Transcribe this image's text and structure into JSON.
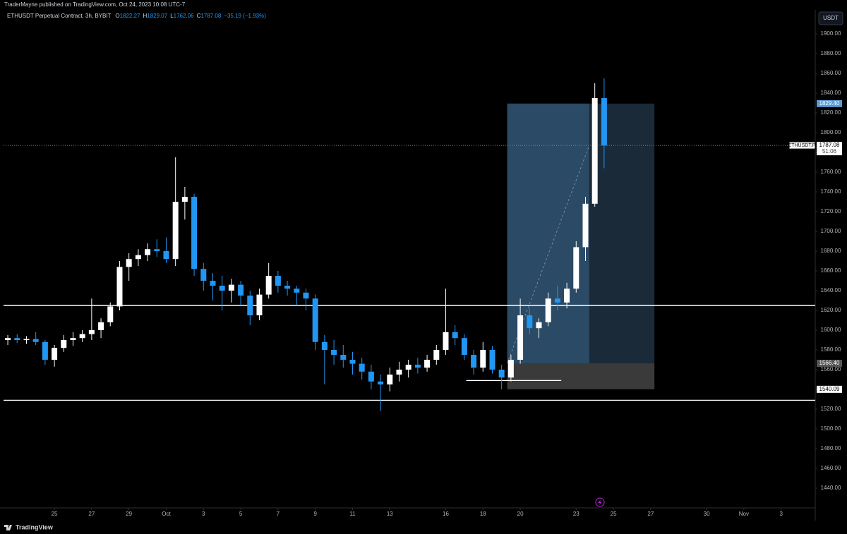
{
  "header": {
    "published": "TraderMayne published on TradingView.com, Oct 24, 2023 10:08 UTC-7"
  },
  "footer": {
    "brand": "TradingView"
  },
  "chart_data": {
    "type": "candlestick",
    "title": "ETHUSDT Perpetual Contract, 3h, BYBIT",
    "legend": {
      "keys": [
        "O",
        "H",
        "L",
        "C"
      ],
      "values": [
        1822.27,
        1829.07,
        1762.06,
        1787.08
      ],
      "change": "−35.19 (−1.93%)"
    },
    "currency": "USDT",
    "up_color": "#ffffff",
    "down_color": "#2196f3",
    "x": [
      22.5,
      23,
      23.5,
      24,
      24.5,
      25,
      25.5,
      26,
      26.5,
      27,
      27.5,
      28,
      28.5,
      29,
      29.5,
      30,
      30.5,
      31,
      31.5,
      32,
      32.5,
      33,
      33.5,
      34,
      34.5,
      35,
      35.5,
      36,
      36.5,
      37,
      37.5,
      38,
      38.5,
      39,
      39.5,
      40,
      40.5,
      41,
      41.5,
      42,
      42.5,
      43,
      43.5,
      44,
      44.5,
      45,
      45.5,
      46,
      46.5,
      47,
      47.5,
      48,
      48.5,
      49,
      49.5,
      50,
      50.5,
      51,
      51.5,
      52,
      52.5,
      53,
      53.5,
      54,
      54.5
    ],
    "open": [
      1590,
      1592,
      1590,
      1591,
      1588,
      1570,
      1582,
      1590,
      1592,
      1596,
      1600,
      1608,
      1624,
      1664,
      1672,
      1676,
      1682,
      1680,
      1672,
      1730,
      1735,
      1662,
      1650,
      1645,
      1640,
      1646,
      1635,
      1615,
      1636,
      1655,
      1645,
      1642,
      1638,
      1632,
      1588,
      1580,
      1575,
      1570,
      1566,
      1558,
      1548,
      1545,
      1555,
      1560,
      1565,
      1562,
      1570,
      1580,
      1598,
      1592,
      1575,
      1562,
      1580,
      1560,
      1552,
      1570,
      1615,
      1602,
      1608,
      1632,
      1628,
      1642,
      1684,
      1728,
      1835
    ],
    "high": [
      1595,
      1596,
      1594,
      1598,
      1590,
      1585,
      1595,
      1598,
      1600,
      1632,
      1612,
      1628,
      1670,
      1678,
      1682,
      1688,
      1692,
      1694,
      1775,
      1745,
      1738,
      1668,
      1658,
      1655,
      1652,
      1650,
      1640,
      1642,
      1668,
      1660,
      1650,
      1645,
      1642,
      1636,
      1595,
      1590,
      1585,
      1578,
      1572,
      1565,
      1555,
      1562,
      1568,
      1570,
      1572,
      1575,
      1585,
      1642,
      1605,
      1596,
      1580,
      1588,
      1584,
      1565,
      1575,
      1632,
      1622,
      1612,
      1638,
      1645,
      1648,
      1690,
      1735,
      1850,
      1855
    ],
    "low": [
      1585,
      1587,
      1586,
      1585,
      1565,
      1563,
      1578,
      1584,
      1588,
      1590,
      1592,
      1604,
      1620,
      1650,
      1665,
      1670,
      1674,
      1668,
      1665,
      1712,
      1655,
      1640,
      1630,
      1620,
      1628,
      1625,
      1605,
      1610,
      1632,
      1638,
      1635,
      1625,
      1620,
      1580,
      1545,
      1565,
      1562,
      1555,
      1550,
      1540,
      1518,
      1538,
      1548,
      1552,
      1556,
      1558,
      1565,
      1575,
      1585,
      1570,
      1555,
      1558,
      1556,
      1540,
      1548,
      1566,
      1596,
      1592,
      1604,
      1620,
      1622,
      1638,
      1670,
      1725,
      1764
    ],
    "close": [
      1592,
      1590,
      1591,
      1588,
      1570,
      1582,
      1590,
      1592,
      1596,
      1600,
      1608,
      1624,
      1664,
      1672,
      1676,
      1682,
      1680,
      1672,
      1730,
      1735,
      1662,
      1650,
      1645,
      1640,
      1646,
      1635,
      1615,
      1636,
      1655,
      1645,
      1642,
      1638,
      1632,
      1588,
      1580,
      1575,
      1570,
      1566,
      1558,
      1548,
      1545,
      1555,
      1560,
      1565,
      1562,
      1570,
      1580,
      1598,
      1592,
      1575,
      1562,
      1580,
      1560,
      1552,
      1570,
      1615,
      1602,
      1608,
      1632,
      1628,
      1642,
      1684,
      1728,
      1835,
      1787
    ],
    "xlim": [
      22.27,
      65.83
    ],
    "ylim": [
      1420,
      1924.3
    ],
    "xticks": [
      {
        "value": 25,
        "label": "25"
      },
      {
        "value": 27,
        "label": "27"
      },
      {
        "value": 29,
        "label": "29"
      },
      {
        "value": 31,
        "label": "Oct"
      },
      {
        "value": 33,
        "label": "3"
      },
      {
        "value": 35,
        "label": "5"
      },
      {
        "value": 37,
        "label": "7"
      },
      {
        "value": 39,
        "label": "9"
      },
      {
        "value": 41,
        "label": "11"
      },
      {
        "value": 43,
        "label": "13"
      },
      {
        "value": 46,
        "label": "16"
      },
      {
        "value": 48,
        "label": "18"
      },
      {
        "value": 50,
        "label": "20"
      },
      {
        "value": 53,
        "label": "23"
      },
      {
        "value": 55,
        "label": "25"
      },
      {
        "value": 57,
        "label": "27"
      },
      {
        "value": 60,
        "label": "30"
      },
      {
        "value": 62,
        "label": "Nov"
      },
      {
        "value": 64,
        "label": "3"
      }
    ],
    "yticks": [
      {
        "value": 1440,
        "label": "1440.00"
      },
      {
        "value": 1460,
        "label": "1460.00"
      },
      {
        "value": 1480,
        "label": "1480.00"
      },
      {
        "value": 1500,
        "label": "1500.00"
      },
      {
        "value": 1520,
        "label": "1520.00"
      },
      {
        "value": 1540,
        "label": "1540.00"
      },
      {
        "value": 1560,
        "label": "1560.00"
      },
      {
        "value": 1580,
        "label": "1580.00"
      },
      {
        "value": 1600,
        "label": "1600.00"
      },
      {
        "value": 1620,
        "label": "1620.00"
      },
      {
        "value": 1640,
        "label": "1640.00"
      },
      {
        "value": 1660,
        "label": "1660.00"
      },
      {
        "value": 1680,
        "label": "1680.00"
      },
      {
        "value": 1700,
        "label": "1700.00"
      },
      {
        "value": 1720,
        "label": "1720.00"
      },
      {
        "value": 1740,
        "label": "1740.00"
      },
      {
        "value": 1760,
        "label": "1760.00"
      },
      {
        "value": 1780,
        "label": "1780.00"
      },
      {
        "value": 1800,
        "label": "1800.00"
      },
      {
        "value": 1820,
        "label": "1820.00"
      },
      {
        "value": 1840,
        "label": "1840.00"
      },
      {
        "value": 1860,
        "label": "1860.00"
      },
      {
        "value": 1880,
        "label": "1880.00"
      },
      {
        "value": 1900,
        "label": "1900.00"
      }
    ],
    "levels": [
      1625,
      1529
    ],
    "ray": {
      "y": 1549,
      "x": [
        47.1,
        52.2
      ]
    },
    "current": {
      "symbol": "ETHUSDT.P",
      "value": 1787.08,
      "label": "1787.08",
      "countdown": "51:06"
    },
    "position": {
      "x": [
        49.3,
        53.7,
        57.2
      ],
      "target": {
        "value": 1829.4,
        "label": "1829.40"
      },
      "entry": {
        "value": 1566.4,
        "label": "1566.40"
      },
      "stop": {
        "value": 1540.09,
        "label": "1540.09"
      }
    }
  }
}
